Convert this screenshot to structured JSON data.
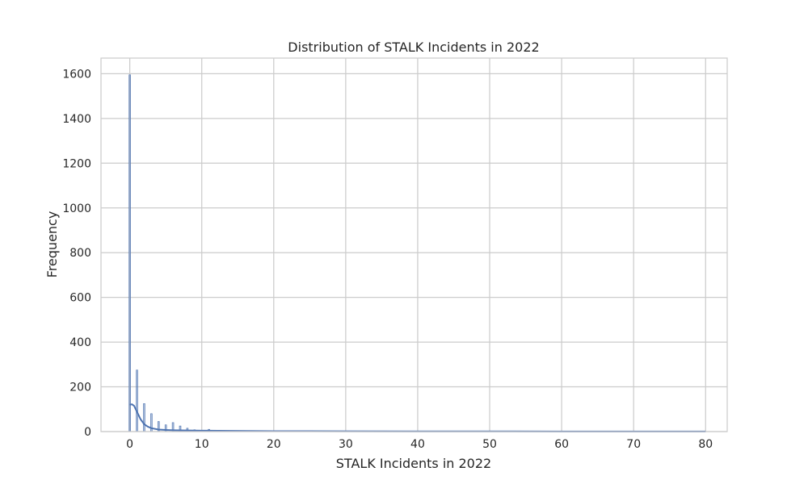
{
  "chart_data": {
    "type": "bar",
    "subtype": "histogram-with-kde",
    "title": "Distribution of STALK Incidents in 2022",
    "xlabel": "STALK Incidents in 2022",
    "ylabel": "Frequency",
    "xlim": [
      -4,
      83
    ],
    "ylim": [
      0,
      1670
    ],
    "xticks": [
      0,
      10,
      20,
      30,
      40,
      50,
      60,
      70,
      80
    ],
    "yticks": [
      0,
      200,
      400,
      600,
      800,
      1000,
      1200,
      1400,
      1600
    ],
    "grid": true,
    "bar_color": "#4c72b0",
    "line_color": "#4c72b0",
    "bins": [
      {
        "x": 0,
        "count": 1595
      },
      {
        "x": 1,
        "count": 275
      },
      {
        "x": 2,
        "count": 125
      },
      {
        "x": 3,
        "count": 80
      },
      {
        "x": 4,
        "count": 45
      },
      {
        "x": 5,
        "count": 30
      },
      {
        "x": 6,
        "count": 40
      },
      {
        "x": 7,
        "count": 25
      },
      {
        "x": 8,
        "count": 15
      },
      {
        "x": 9,
        "count": 8
      },
      {
        "x": 10,
        "count": 6
      },
      {
        "x": 11,
        "count": 10
      },
      {
        "x": 12,
        "count": 4
      },
      {
        "x": 13,
        "count": 3
      },
      {
        "x": 14,
        "count": 3
      },
      {
        "x": 15,
        "count": 2
      },
      {
        "x": 16,
        "count": 2
      },
      {
        "x": 18,
        "count": 1
      },
      {
        "x": 20,
        "count": 2
      },
      {
        "x": 22,
        "count": 1
      },
      {
        "x": 25,
        "count": 1
      },
      {
        "x": 30,
        "count": 1
      },
      {
        "x": 35,
        "count": 1
      },
      {
        "x": 40,
        "count": 1
      },
      {
        "x": 50,
        "count": 1
      },
      {
        "x": 60,
        "count": 1
      },
      {
        "x": 79,
        "count": 1
      }
    ],
    "kde": {
      "x": [
        0,
        0.3,
        0.6,
        1,
        1.5,
        2,
        2.5,
        3,
        4,
        5,
        6,
        8,
        10,
        14,
        20,
        30,
        40,
        50,
        60,
        70,
        80
      ],
      "y": [
        120,
        122,
        115,
        88,
        55,
        33,
        22,
        15,
        9,
        7,
        6,
        5,
        4,
        3,
        2,
        1.5,
        1,
        0.8,
        0.6,
        0.4,
        0.3
      ]
    }
  }
}
